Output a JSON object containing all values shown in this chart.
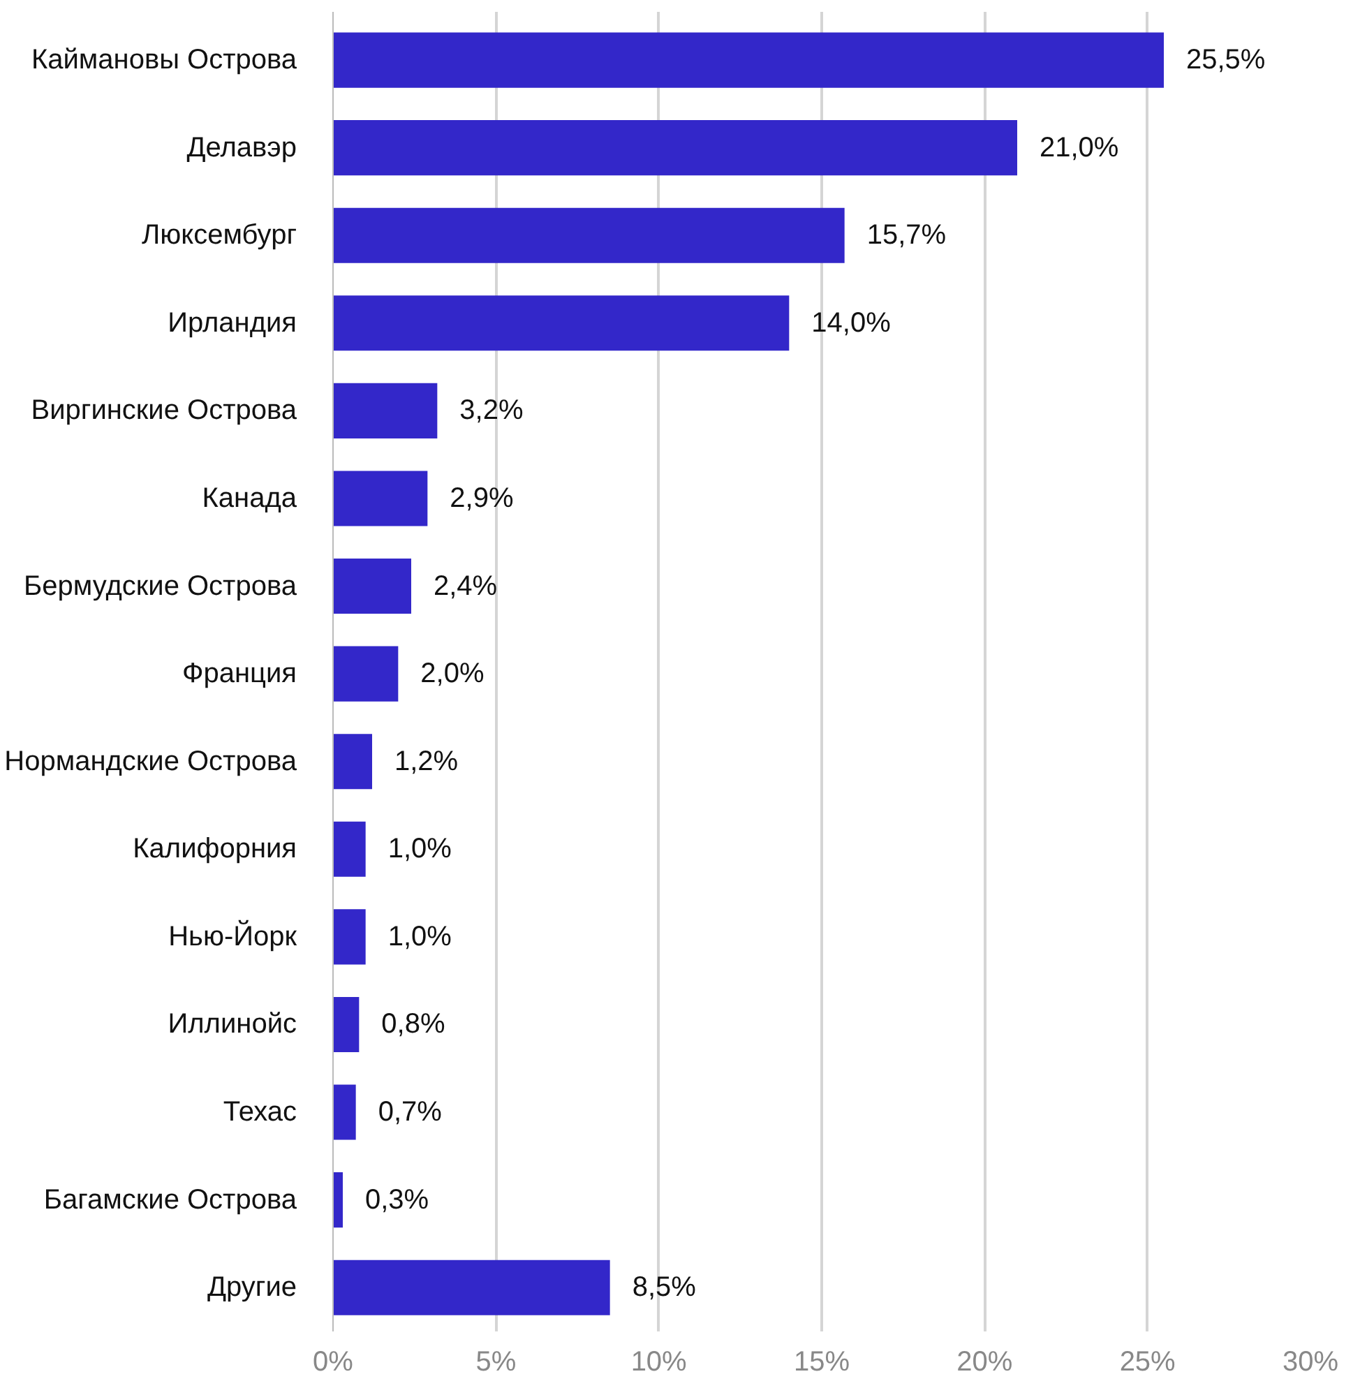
{
  "chart_data": {
    "type": "bar",
    "orientation": "horizontal",
    "categories": [
      "Каймановы Острова",
      "Делавэр",
      "Люксембург",
      "Ирландия",
      "Виргинские Острова",
      "Канада",
      "Бермудские Острова",
      "Франция",
      "Нормандские Острова",
      "Калифорния",
      "Нью-Йорк",
      "Иллинойс",
      "Техас",
      "Багамские Острова",
      "Другие"
    ],
    "values": [
      25.5,
      21.0,
      15.7,
      14.0,
      3.2,
      2.9,
      2.4,
      2.0,
      1.2,
      1.0,
      1.0,
      0.8,
      0.7,
      0.3,
      8.5
    ],
    "value_labels": [
      "25,5%",
      "21,0%",
      "15,7%",
      "14,0%",
      "3,2%",
      "2,9%",
      "2,4%",
      "2,0%",
      "1,2%",
      "1,0%",
      "1,0%",
      "0,8%",
      "0,7%",
      "0,3%",
      "8,5%"
    ],
    "color": "#3327c9",
    "xlim": [
      0,
      30
    ],
    "xticks": [
      {
        "value": 0,
        "label": "0%"
      },
      {
        "value": 5,
        "label": "5%"
      },
      {
        "value": 10,
        "label": "10%"
      },
      {
        "value": 15,
        "label": "15%"
      },
      {
        "value": 20,
        "label": "20%"
      },
      {
        "value": 25,
        "label": "25%"
      },
      {
        "value": 30,
        "label": "30%"
      }
    ],
    "grid": "x"
  }
}
